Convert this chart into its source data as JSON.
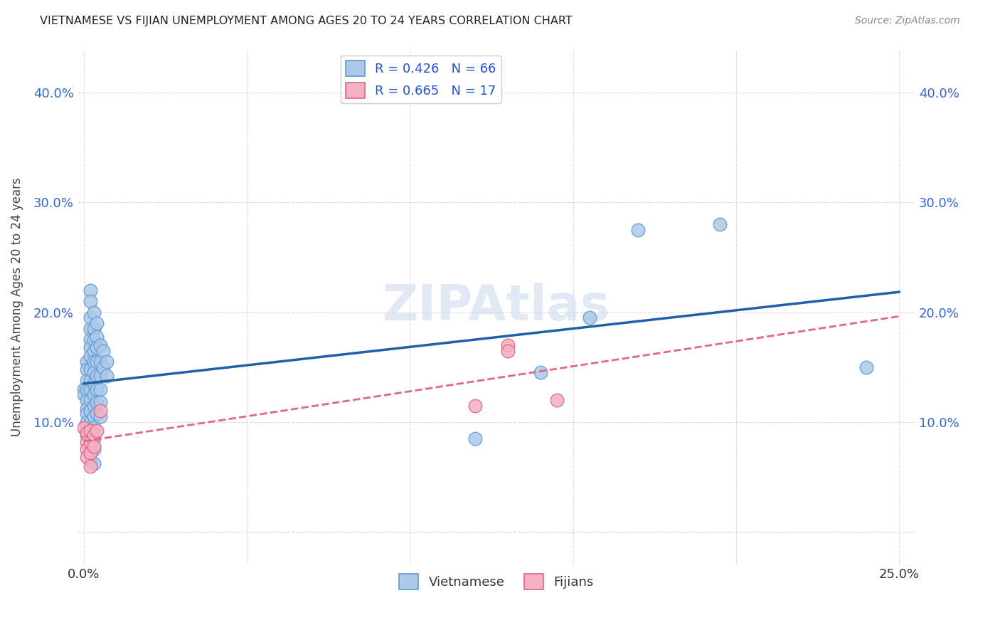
{
  "title": "VIETNAMESE VS FIJIAN UNEMPLOYMENT AMONG AGES 20 TO 24 YEARS CORRELATION CHART",
  "source": "Source: ZipAtlas.com",
  "ylabel": "Unemployment Among Ages 20 to 24 years",
  "xlim": [
    -0.002,
    0.255
  ],
  "ylim": [
    -0.03,
    0.44
  ],
  "xtick_vals": [
    0.0,
    0.05,
    0.1,
    0.15,
    0.2,
    0.25
  ],
  "xtick_labels": [
    "0.0%",
    "",
    "",
    "",
    "",
    "25.0%"
  ],
  "ytick_vals": [
    0.0,
    0.1,
    0.2,
    0.3,
    0.4
  ],
  "ytick_labels": [
    "",
    "10.0%",
    "20.0%",
    "30.0%",
    "40.0%"
  ],
  "viet_color": "#adc8e8",
  "viet_edge": "#5b9bd5",
  "fiji_color": "#f4b0c4",
  "fiji_edge": "#e06080",
  "viet_line_color": "#2060a8",
  "fiji_line_color": "#e06880",
  "watermark": "ZIPAtlas",
  "viet_pts": [
    [
      0.0,
      0.13
    ],
    [
      0.0,
      0.125
    ],
    [
      0.001,
      0.155
    ],
    [
      0.001,
      0.148
    ],
    [
      0.001,
      0.138
    ],
    [
      0.001,
      0.13
    ],
    [
      0.001,
      0.12
    ],
    [
      0.001,
      0.112
    ],
    [
      0.001,
      0.108
    ],
    [
      0.001,
      0.1
    ],
    [
      0.001,
      0.095
    ],
    [
      0.001,
      0.088
    ],
    [
      0.002,
      0.22
    ],
    [
      0.002,
      0.21
    ],
    [
      0.002,
      0.195
    ],
    [
      0.002,
      0.185
    ],
    [
      0.002,
      0.175
    ],
    [
      0.002,
      0.168
    ],
    [
      0.002,
      0.16
    ],
    [
      0.002,
      0.148
    ],
    [
      0.002,
      0.138
    ],
    [
      0.002,
      0.13
    ],
    [
      0.002,
      0.12
    ],
    [
      0.002,
      0.11
    ],
    [
      0.002,
      0.1
    ],
    [
      0.002,
      0.09
    ],
    [
      0.002,
      0.075
    ],
    [
      0.002,
      0.065
    ],
    [
      0.003,
      0.2
    ],
    [
      0.003,
      0.185
    ],
    [
      0.003,
      0.175
    ],
    [
      0.003,
      0.165
    ],
    [
      0.003,
      0.155
    ],
    [
      0.003,
      0.145
    ],
    [
      0.003,
      0.135
    ],
    [
      0.003,
      0.125
    ],
    [
      0.003,
      0.115
    ],
    [
      0.003,
      0.105
    ],
    [
      0.003,
      0.095
    ],
    [
      0.003,
      0.085
    ],
    [
      0.003,
      0.075
    ],
    [
      0.003,
      0.062
    ],
    [
      0.004,
      0.19
    ],
    [
      0.004,
      0.178
    ],
    [
      0.004,
      0.168
    ],
    [
      0.004,
      0.155
    ],
    [
      0.004,
      0.142
    ],
    [
      0.004,
      0.13
    ],
    [
      0.004,
      0.118
    ],
    [
      0.004,
      0.108
    ],
    [
      0.005,
      0.17
    ],
    [
      0.005,
      0.155
    ],
    [
      0.005,
      0.142
    ],
    [
      0.005,
      0.13
    ],
    [
      0.005,
      0.118
    ],
    [
      0.005,
      0.105
    ],
    [
      0.006,
      0.165
    ],
    [
      0.006,
      0.15
    ],
    [
      0.007,
      0.155
    ],
    [
      0.007,
      0.142
    ],
    [
      0.12,
      0.085
    ],
    [
      0.14,
      0.145
    ],
    [
      0.155,
      0.195
    ],
    [
      0.17,
      0.275
    ],
    [
      0.195,
      0.28
    ],
    [
      0.24,
      0.15
    ]
  ],
  "fiji_pts": [
    [
      0.0,
      0.095
    ],
    [
      0.001,
      0.09
    ],
    [
      0.001,
      0.082
    ],
    [
      0.001,
      0.075
    ],
    [
      0.001,
      0.068
    ],
    [
      0.002,
      0.092
    ],
    [
      0.002,
      0.082
    ],
    [
      0.002,
      0.072
    ],
    [
      0.002,
      0.06
    ],
    [
      0.003,
      0.088
    ],
    [
      0.003,
      0.078
    ],
    [
      0.004,
      0.092
    ],
    [
      0.005,
      0.11
    ],
    [
      0.12,
      0.115
    ],
    [
      0.13,
      0.17
    ],
    [
      0.13,
      0.165
    ],
    [
      0.145,
      0.12
    ]
  ]
}
